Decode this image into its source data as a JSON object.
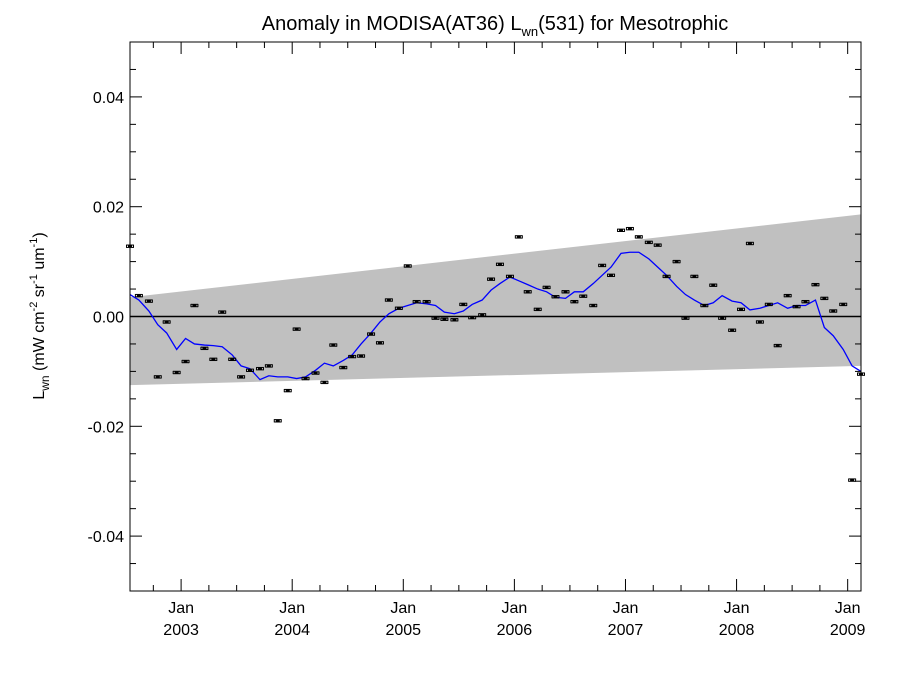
{
  "chart_data": {
    "type": "scatter",
    "title": {
      "pre": "Anomaly in MODISA(AT36) L",
      "sub": "wn",
      "post": "(531) for Mesotrophic"
    },
    "ylabel": {
      "main": "L",
      "sub": "wn",
      "units_pre": " (mW cm",
      "sup1": "-2",
      "mid1": " sr",
      "sup2": "-1",
      "mid2": " um",
      "sup3": "-1",
      "close": ")"
    },
    "xlim": [
      2002.54,
      2009.12
    ],
    "ylim": [
      -0.05,
      0.05
    ],
    "x_ticks": [
      {
        "value": 2003.0,
        "month": "Jan",
        "year": "2003"
      },
      {
        "value": 2004.0,
        "month": "Jan",
        "year": "2004"
      },
      {
        "value": 2005.0,
        "month": "Jan",
        "year": "2005"
      },
      {
        "value": 2006.0,
        "month": "Jan",
        "year": "2006"
      },
      {
        "value": 2007.0,
        "month": "Jan",
        "year": "2007"
      },
      {
        "value": 2008.0,
        "month": "Jan",
        "year": "2008"
      },
      {
        "value": 2009.0,
        "month": "Jan",
        "year": "2009"
      }
    ],
    "y_ticks": [
      {
        "value": 0.04,
        "label": "0.04"
      },
      {
        "value": 0.02,
        "label": "0.02"
      },
      {
        "value": 0.0,
        "label": "0.00"
      },
      {
        "value": -0.02,
        "label": "-0.02"
      },
      {
        "value": -0.04,
        "label": "-0.04"
      }
    ],
    "band": {
      "color": "#c0c0c0",
      "upper": [
        [
          2002.54,
          0.0035
        ],
        [
          2009.12,
          0.0186
        ]
      ],
      "lower": [
        [
          2002.54,
          -0.0125
        ],
        [
          2009.12,
          -0.009
        ]
      ]
    },
    "zero_line": 0.0,
    "series": [
      {
        "marker": "errorbar",
        "color": "#000000",
        "points": [
          [
            2002.54,
            0.0128
          ],
          [
            2002.62,
            0.0038
          ],
          [
            2002.71,
            0.0028
          ],
          [
            2002.79,
            -0.011
          ],
          [
            2002.87,
            -0.001
          ],
          [
            2002.96,
            -0.0102
          ],
          [
            2003.04,
            -0.0082
          ],
          [
            2003.12,
            0.002
          ],
          [
            2003.21,
            -0.0058
          ],
          [
            2003.29,
            -0.0078
          ],
          [
            2003.37,
            0.0008
          ],
          [
            2003.46,
            -0.0078
          ],
          [
            2003.54,
            -0.011
          ],
          [
            2003.62,
            -0.0098
          ],
          [
            2003.71,
            -0.0095
          ],
          [
            2003.79,
            -0.009
          ],
          [
            2003.87,
            -0.019
          ],
          [
            2003.96,
            -0.0135
          ],
          [
            2004.04,
            -0.0023
          ],
          [
            2004.12,
            -0.0113
          ],
          [
            2004.21,
            -0.0103
          ],
          [
            2004.29,
            -0.012
          ],
          [
            2004.37,
            -0.0052
          ],
          [
            2004.46,
            -0.0093
          ],
          [
            2004.54,
            -0.0073
          ],
          [
            2004.62,
            -0.0072
          ],
          [
            2004.71,
            -0.0032
          ],
          [
            2004.79,
            -0.0048
          ],
          [
            2004.87,
            0.003
          ],
          [
            2004.96,
            0.0015
          ],
          [
            2005.04,
            0.0092
          ],
          [
            2005.12,
            0.0027
          ],
          [
            2005.21,
            0.0027
          ],
          [
            2005.29,
            -0.0003
          ],
          [
            2005.37,
            -0.0005
          ],
          [
            2005.46,
            -0.0006
          ],
          [
            2005.54,
            0.0022
          ],
          [
            2005.62,
            -0.0002
          ],
          [
            2005.71,
            0.0003
          ],
          [
            2005.79,
            0.0068
          ],
          [
            2005.87,
            0.0095
          ],
          [
            2005.96,
            0.0073
          ],
          [
            2006.04,
            0.0145
          ],
          [
            2006.12,
            0.0045
          ],
          [
            2006.21,
            0.0013
          ],
          [
            2006.29,
            0.0053
          ],
          [
            2006.37,
            0.0036
          ],
          [
            2006.46,
            0.0045
          ],
          [
            2006.54,
            0.0027
          ],
          [
            2006.62,
            0.0037
          ],
          [
            2006.71,
            0.002
          ],
          [
            2006.79,
            0.0093
          ],
          [
            2006.87,
            0.0075
          ],
          [
            2006.96,
            0.0157
          ],
          [
            2007.04,
            0.016
          ],
          [
            2007.12,
            0.0145
          ],
          [
            2007.21,
            0.0135
          ],
          [
            2007.29,
            0.013
          ],
          [
            2007.37,
            0.0073
          ],
          [
            2007.46,
            0.01
          ],
          [
            2007.54,
            -0.0003
          ],
          [
            2007.62,
            0.0073
          ],
          [
            2007.71,
            0.002
          ],
          [
            2007.79,
            0.0057
          ],
          [
            2007.87,
            -0.0003
          ],
          [
            2007.96,
            -0.0025
          ],
          [
            2008.04,
            0.0013
          ],
          [
            2008.12,
            0.0133
          ],
          [
            2008.21,
            -0.001
          ],
          [
            2008.29,
            0.0022
          ],
          [
            2008.37,
            -0.0053
          ],
          [
            2008.46,
            0.0038
          ],
          [
            2008.54,
            0.0018
          ],
          [
            2008.62,
            0.0027
          ],
          [
            2008.71,
            0.0058
          ],
          [
            2008.79,
            0.0033
          ],
          [
            2008.87,
            0.001
          ],
          [
            2008.96,
            0.0022
          ],
          [
            2009.04,
            -0.0298
          ],
          [
            2009.12,
            -0.0105
          ]
        ]
      },
      {
        "marker": "line",
        "color": "#0000ff",
        "points": [
          [
            2002.54,
            0.004
          ],
          [
            2002.62,
            0.003
          ],
          [
            2002.71,
            0.001
          ],
          [
            2002.79,
            -0.0015
          ],
          [
            2002.87,
            -0.003
          ],
          [
            2002.96,
            -0.006
          ],
          [
            2003.04,
            -0.004
          ],
          [
            2003.12,
            -0.005
          ],
          [
            2003.21,
            -0.0052
          ],
          [
            2003.29,
            -0.0053
          ],
          [
            2003.37,
            -0.0055
          ],
          [
            2003.46,
            -0.007
          ],
          [
            2003.54,
            -0.009
          ],
          [
            2003.62,
            -0.0095
          ],
          [
            2003.71,
            -0.0115
          ],
          [
            2003.79,
            -0.0108
          ],
          [
            2003.87,
            -0.011
          ],
          [
            2003.96,
            -0.011
          ],
          [
            2004.04,
            -0.0113
          ],
          [
            2004.12,
            -0.011
          ],
          [
            2004.21,
            -0.0098
          ],
          [
            2004.29,
            -0.0085
          ],
          [
            2004.37,
            -0.009
          ],
          [
            2004.46,
            -0.008
          ],
          [
            2004.54,
            -0.007
          ],
          [
            2004.62,
            -0.005
          ],
          [
            2004.71,
            -0.003
          ],
          [
            2004.79,
            -0.001
          ],
          [
            2004.87,
            0.0005
          ],
          [
            2004.96,
            0.0015
          ],
          [
            2005.04,
            0.002
          ],
          [
            2005.12,
            0.0025
          ],
          [
            2005.21,
            0.0023
          ],
          [
            2005.29,
            0.002
          ],
          [
            2005.37,
            0.0008
          ],
          [
            2005.46,
            0.0005
          ],
          [
            2005.54,
            0.001
          ],
          [
            2005.62,
            0.0022
          ],
          [
            2005.71,
            0.003
          ],
          [
            2005.79,
            0.0048
          ],
          [
            2005.87,
            0.006
          ],
          [
            2005.96,
            0.0072
          ],
          [
            2006.04,
            0.0065
          ],
          [
            2006.12,
            0.0058
          ],
          [
            2006.21,
            0.005
          ],
          [
            2006.29,
            0.0045
          ],
          [
            2006.37,
            0.0035
          ],
          [
            2006.46,
            0.0033
          ],
          [
            2006.54,
            0.0045
          ],
          [
            2006.62,
            0.0045
          ],
          [
            2006.71,
            0.006
          ],
          [
            2006.79,
            0.0075
          ],
          [
            2006.87,
            0.009
          ],
          [
            2006.96,
            0.0115
          ],
          [
            2007.04,
            0.0117
          ],
          [
            2007.12,
            0.0117
          ],
          [
            2007.21,
            0.0105
          ],
          [
            2007.29,
            0.009
          ],
          [
            2007.37,
            0.0075
          ],
          [
            2007.46,
            0.0055
          ],
          [
            2007.54,
            0.004
          ],
          [
            2007.62,
            0.003
          ],
          [
            2007.71,
            0.002
          ],
          [
            2007.79,
            0.0025
          ],
          [
            2007.87,
            0.0038
          ],
          [
            2007.96,
            0.0028
          ],
          [
            2008.04,
            0.0025
          ],
          [
            2008.12,
            0.0012
          ],
          [
            2008.21,
            0.0015
          ],
          [
            2008.29,
            0.002
          ],
          [
            2008.37,
            0.0025
          ],
          [
            2008.46,
            0.0015
          ],
          [
            2008.54,
            0.002
          ],
          [
            2008.62,
            0.002
          ],
          [
            2008.71,
            0.003
          ],
          [
            2008.79,
            -0.002
          ],
          [
            2008.87,
            -0.0035
          ],
          [
            2008.96,
            -0.006
          ],
          [
            2009.04,
            -0.009
          ],
          [
            2009.12,
            -0.01
          ]
        ]
      }
    ]
  }
}
